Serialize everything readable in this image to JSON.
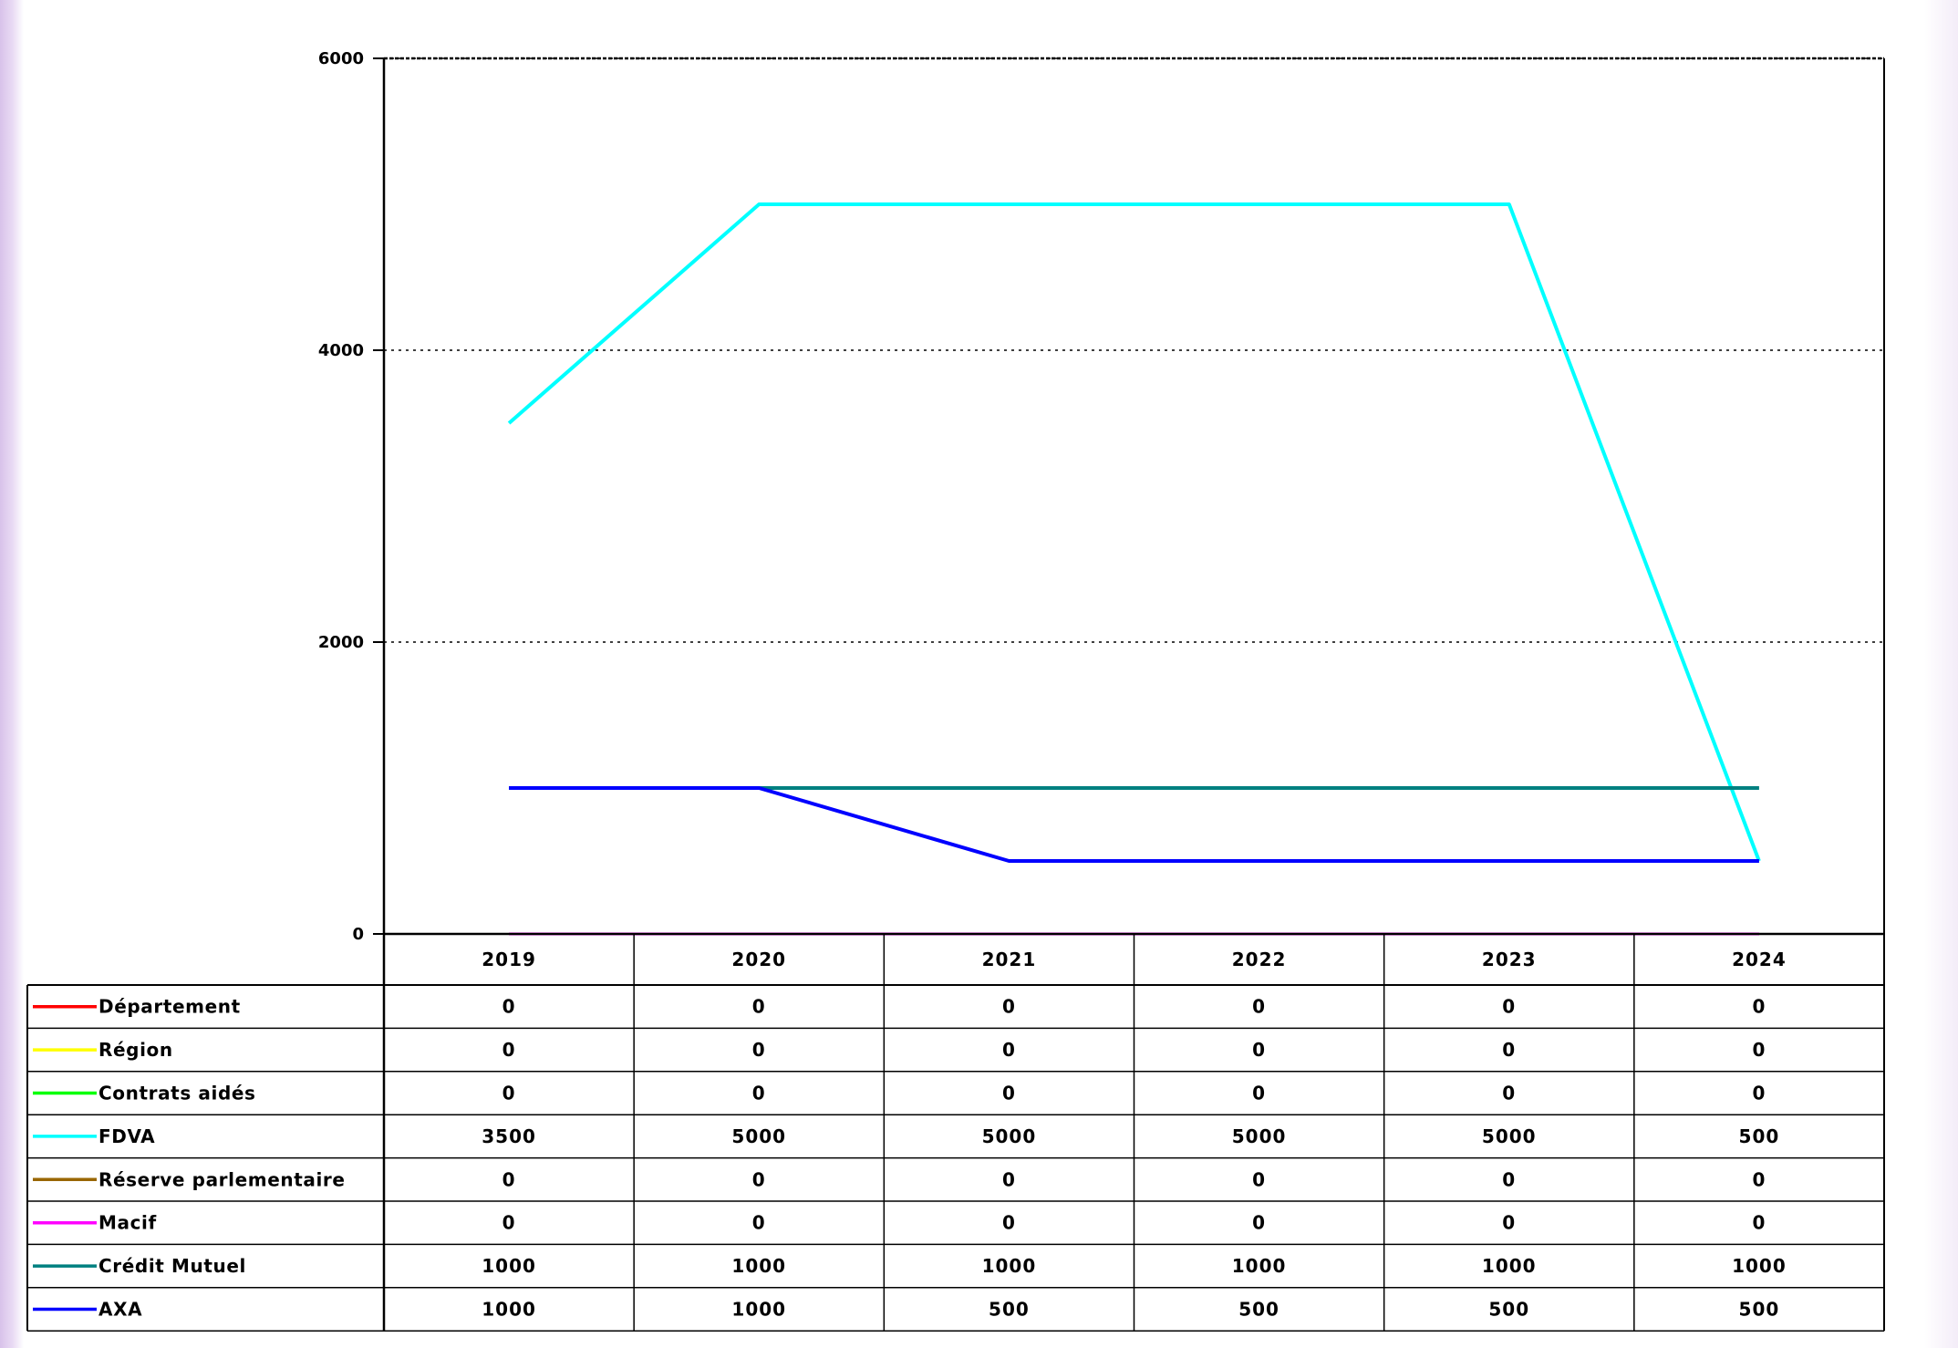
{
  "chart_data": {
    "type": "line",
    "categories": [
      "2019",
      "2020",
      "2021",
      "2022",
      "2023",
      "2024"
    ],
    "ylim": [
      0,
      6000
    ],
    "yticks": [
      "0",
      "2000",
      "4000",
      "6000"
    ],
    "grid": true,
    "legend": "data-table-below",
    "series": [
      {
        "name": "Département",
        "color": "#ff0000",
        "values": [
          0,
          0,
          0,
          0,
          0,
          0
        ]
      },
      {
        "name": "Région",
        "color": "#ffff00",
        "values": [
          0,
          0,
          0,
          0,
          0,
          0
        ]
      },
      {
        "name": "Contrats aidés",
        "color": "#00ff00",
        "values": [
          0,
          0,
          0,
          0,
          0,
          0
        ]
      },
      {
        "name": "FDVA",
        "color": "#00ffff",
        "values": [
          3500,
          5000,
          5000,
          5000,
          5000,
          500
        ]
      },
      {
        "name": "Réserve parlementaire",
        "color": "#996600",
        "values": [
          0,
          0,
          0,
          0,
          0,
          0
        ]
      },
      {
        "name": "Macif",
        "color": "#ff00ff",
        "values": [
          0,
          0,
          0,
          0,
          0,
          0
        ]
      },
      {
        "name": "Crédit Mutuel",
        "color": "#008080",
        "values": [
          1000,
          1000,
          1000,
          1000,
          1000,
          1000
        ]
      },
      {
        "name": "AXA",
        "color": "#0000ff",
        "values": [
          1000,
          1000,
          500,
          500,
          500,
          500
        ]
      }
    ]
  }
}
